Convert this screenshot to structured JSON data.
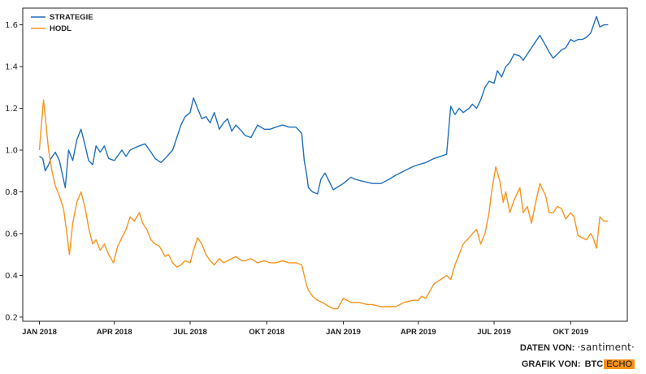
{
  "chart_data": {
    "type": "line",
    "title": "",
    "xlabel": "",
    "ylabel": "",
    "ylim": [
      0.18,
      1.68
    ],
    "y_ticks": [
      0.2,
      0.4,
      0.6,
      0.8,
      1.0,
      1.2,
      1.4,
      1.6
    ],
    "y_tick_labels": [
      "0.2",
      "0.4",
      "0.6",
      "0.8",
      "1.0",
      "1.2",
      "1.4",
      "1.6"
    ],
    "x_range": [
      "2017-12-12",
      "2019-12-08"
    ],
    "x_ticks": [
      "2018-01-01",
      "2018-04-01",
      "2018-07-01",
      "2018-10-01",
      "2019-01-01",
      "2019-04-01",
      "2019-07-01",
      "2019-10-01"
    ],
    "x_tick_labels": [
      "JAN 2018",
      "APR 2018",
      "JUL 2018",
      "OKT 2018",
      "JAN 2019",
      "APR 2019",
      "JUL 2019",
      "OKT 2019"
    ],
    "grid": false,
    "legend_position": "top-left",
    "series": [
      {
        "name": "STRATEGIE",
        "color": "#1f6fc0",
        "x": [
          "2018-01-01",
          "2018-01-05",
          "2018-01-08",
          "2018-01-12",
          "2018-01-15",
          "2018-01-20",
          "2018-01-25",
          "2018-02-01",
          "2018-02-05",
          "2018-02-10",
          "2018-02-15",
          "2018-02-20",
          "2018-02-25",
          "2018-03-01",
          "2018-03-06",
          "2018-03-10",
          "2018-03-15",
          "2018-03-20",
          "2018-03-25",
          "2018-04-01",
          "2018-04-10",
          "2018-04-15",
          "2018-04-20",
          "2018-04-25",
          "2018-05-01",
          "2018-05-08",
          "2018-05-15",
          "2018-05-20",
          "2018-05-27",
          "2018-06-01",
          "2018-06-10",
          "2018-06-15",
          "2018-06-20",
          "2018-06-25",
          "2018-07-01",
          "2018-07-05",
          "2018-07-10",
          "2018-07-15",
          "2018-07-20",
          "2018-07-25",
          "2018-07-30",
          "2018-08-05",
          "2018-08-10",
          "2018-08-15",
          "2018-08-20",
          "2018-08-25",
          "2018-09-01",
          "2018-09-05",
          "2018-09-12",
          "2018-09-20",
          "2018-09-28",
          "2018-10-05",
          "2018-10-12",
          "2018-10-20",
          "2018-10-28",
          "2018-11-05",
          "2018-11-12",
          "2018-11-15",
          "2018-11-18",
          "2018-11-20",
          "2018-11-25",
          "2018-12-01",
          "2018-12-05",
          "2018-12-10",
          "2018-12-15",
          "2018-12-20",
          "2019-01-01",
          "2019-01-10",
          "2019-01-15",
          "2019-01-25",
          "2019-02-05",
          "2019-02-15",
          "2019-02-25",
          "2019-03-05",
          "2019-03-15",
          "2019-03-25",
          "2019-04-01",
          "2019-04-10",
          "2019-04-20",
          "2019-04-28",
          "2019-05-05",
          "2019-05-10",
          "2019-05-15",
          "2019-05-20",
          "2019-05-25",
          "2019-06-01",
          "2019-06-05",
          "2019-06-10",
          "2019-06-15",
          "2019-06-20",
          "2019-06-25",
          "2019-07-01",
          "2019-07-05",
          "2019-07-10",
          "2019-07-15",
          "2019-07-20",
          "2019-07-25",
          "2019-08-01",
          "2019-08-05",
          "2019-08-10",
          "2019-08-15",
          "2019-08-20",
          "2019-08-25",
          "2019-09-01",
          "2019-09-05",
          "2019-09-10",
          "2019-09-15",
          "2019-09-20",
          "2019-09-25",
          "2019-10-01",
          "2019-10-05",
          "2019-10-10",
          "2019-10-15",
          "2019-10-20",
          "2019-10-25",
          "2019-11-01",
          "2019-11-05",
          "2019-11-10",
          "2019-11-15"
        ],
        "values": [
          0.97,
          0.96,
          0.9,
          0.93,
          0.96,
          0.99,
          0.95,
          0.82,
          1.0,
          0.95,
          1.05,
          1.1,
          1.02,
          0.95,
          0.93,
          1.02,
          0.99,
          1.02,
          0.96,
          0.95,
          1.0,
          0.97,
          1.0,
          1.01,
          1.02,
          1.03,
          0.99,
          0.96,
          0.94,
          0.96,
          1.0,
          1.06,
          1.12,
          1.16,
          1.18,
          1.25,
          1.2,
          1.15,
          1.16,
          1.13,
          1.18,
          1.1,
          1.13,
          1.15,
          1.09,
          1.12,
          1.09,
          1.07,
          1.06,
          1.12,
          1.1,
          1.1,
          1.11,
          1.12,
          1.11,
          1.11,
          1.08,
          0.95,
          0.88,
          0.82,
          0.8,
          0.79,
          0.86,
          0.89,
          0.85,
          0.81,
          0.84,
          0.87,
          0.86,
          0.85,
          0.84,
          0.84,
          0.86,
          0.88,
          0.9,
          0.92,
          0.93,
          0.94,
          0.96,
          0.97,
          0.98,
          1.21,
          1.17,
          1.2,
          1.18,
          1.2,
          1.22,
          1.2,
          1.24,
          1.3,
          1.33,
          1.32,
          1.38,
          1.35,
          1.4,
          1.42,
          1.46,
          1.45,
          1.43,
          1.46,
          1.49,
          1.52,
          1.55,
          1.5,
          1.47,
          1.44,
          1.46,
          1.48,
          1.49,
          1.53,
          1.52,
          1.53,
          1.53,
          1.54,
          1.56,
          1.64,
          1.59,
          1.6,
          1.6
        ]
      },
      {
        "name": "HODL",
        "color": "#f7941d",
        "x": [
          "2018-01-01",
          "2018-01-03",
          "2018-01-06",
          "2018-01-09",
          "2018-01-12",
          "2018-01-16",
          "2018-01-20",
          "2018-01-25",
          "2018-01-30",
          "2018-02-03",
          "2018-02-06",
          "2018-02-10",
          "2018-02-15",
          "2018-02-20",
          "2018-02-25",
          "2018-03-01",
          "2018-03-06",
          "2018-03-10",
          "2018-03-15",
          "2018-03-20",
          "2018-03-25",
          "2018-03-31",
          "2018-04-05",
          "2018-04-10",
          "2018-04-15",
          "2018-04-20",
          "2018-04-25",
          "2018-05-01",
          "2018-05-05",
          "2018-05-10",
          "2018-05-15",
          "2018-05-20",
          "2018-05-25",
          "2018-06-01",
          "2018-06-05",
          "2018-06-10",
          "2018-06-15",
          "2018-06-20",
          "2018-06-25",
          "2018-07-01",
          "2018-07-05",
          "2018-07-10",
          "2018-07-15",
          "2018-07-20",
          "2018-07-25",
          "2018-07-30",
          "2018-08-05",
          "2018-08-10",
          "2018-08-15",
          "2018-08-20",
          "2018-08-25",
          "2018-09-01",
          "2018-09-05",
          "2018-09-12",
          "2018-09-20",
          "2018-09-28",
          "2018-10-05",
          "2018-10-12",
          "2018-10-20",
          "2018-10-28",
          "2018-11-05",
          "2018-11-12",
          "2018-11-15",
          "2018-11-18",
          "2018-11-20",
          "2018-11-25",
          "2018-12-01",
          "2018-12-07",
          "2018-12-15",
          "2018-12-20",
          "2018-12-25",
          "2019-01-01",
          "2019-01-10",
          "2019-01-20",
          "2019-01-30",
          "2019-02-05",
          "2019-02-15",
          "2019-02-25",
          "2019-03-05",
          "2019-03-15",
          "2019-03-25",
          "2019-04-01",
          "2019-04-05",
          "2019-04-10",
          "2019-04-20",
          "2019-04-28",
          "2019-05-05",
          "2019-05-10",
          "2019-05-15",
          "2019-05-20",
          "2019-05-25",
          "2019-06-01",
          "2019-06-05",
          "2019-06-10",
          "2019-06-15",
          "2019-06-20",
          "2019-06-25",
          "2019-06-28",
          "2019-07-03",
          "2019-07-08",
          "2019-07-12",
          "2019-07-15",
          "2019-07-20",
          "2019-07-25",
          "2019-08-01",
          "2019-08-05",
          "2019-08-10",
          "2019-08-15",
          "2019-08-20",
          "2019-08-25",
          "2019-09-01",
          "2019-09-05",
          "2019-09-10",
          "2019-09-15",
          "2019-09-20",
          "2019-09-25",
          "2019-10-01",
          "2019-10-05",
          "2019-10-10",
          "2019-10-15",
          "2019-10-20",
          "2019-10-25",
          "2019-10-28",
          "2019-11-01",
          "2019-11-05",
          "2019-11-10",
          "2019-11-15"
        ],
        "values": [
          1.0,
          1.1,
          1.24,
          1.12,
          1.0,
          0.9,
          0.83,
          0.78,
          0.72,
          0.6,
          0.5,
          0.65,
          0.75,
          0.8,
          0.72,
          0.63,
          0.55,
          0.57,
          0.52,
          0.55,
          0.5,
          0.46,
          0.54,
          0.58,
          0.62,
          0.68,
          0.66,
          0.7,
          0.65,
          0.62,
          0.57,
          0.55,
          0.54,
          0.49,
          0.5,
          0.46,
          0.44,
          0.45,
          0.47,
          0.46,
          0.52,
          0.58,
          0.55,
          0.5,
          0.47,
          0.45,
          0.48,
          0.46,
          0.47,
          0.48,
          0.49,
          0.47,
          0.47,
          0.48,
          0.46,
          0.47,
          0.46,
          0.46,
          0.47,
          0.46,
          0.46,
          0.45,
          0.4,
          0.35,
          0.33,
          0.3,
          0.28,
          0.27,
          0.25,
          0.24,
          0.24,
          0.29,
          0.27,
          0.27,
          0.26,
          0.26,
          0.25,
          0.25,
          0.25,
          0.27,
          0.28,
          0.28,
          0.3,
          0.29,
          0.36,
          0.38,
          0.4,
          0.38,
          0.45,
          0.5,
          0.55,
          0.58,
          0.6,
          0.62,
          0.55,
          0.6,
          0.7,
          0.8,
          0.92,
          0.85,
          0.75,
          0.8,
          0.7,
          0.76,
          0.82,
          0.7,
          0.73,
          0.65,
          0.75,
          0.84,
          0.78,
          0.7,
          0.7,
          0.73,
          0.72,
          0.67,
          0.7,
          0.68,
          0.59,
          0.58,
          0.57,
          0.6,
          0.58,
          0.53,
          0.68,
          0.66,
          0.66
        ]
      }
    ]
  },
  "credits": {
    "data_prefix": "DATEN VON:",
    "data_source": "·santiment·",
    "graphic_prefix": "GRAFIK VON:",
    "brand_btc": "BTC",
    "brand_echo": "ECHO"
  },
  "colors": {
    "strategie": "#1f6fc0",
    "hodl": "#f7941d",
    "axis": "#222222",
    "echo_badge": "#f7931a"
  }
}
